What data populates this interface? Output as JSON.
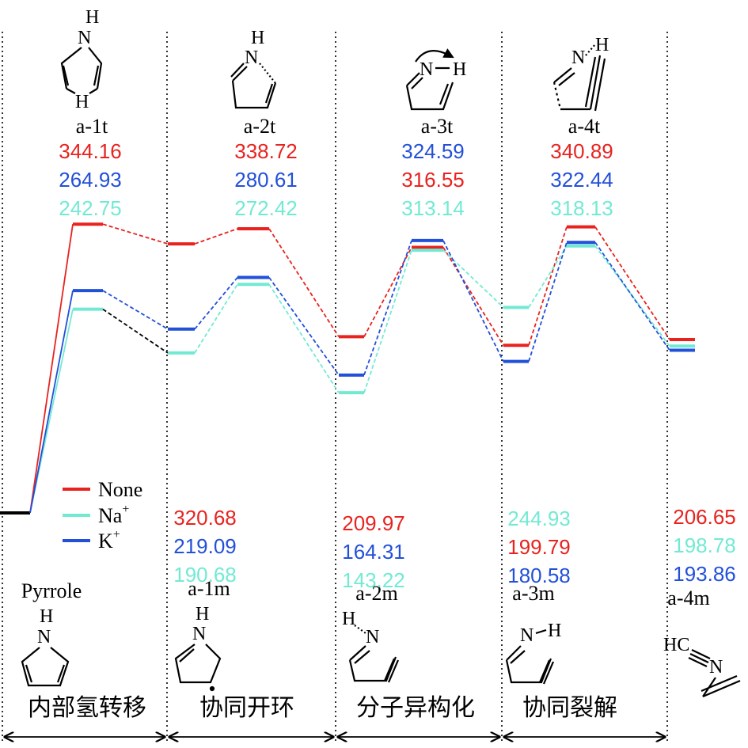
{
  "colors": {
    "None": "#e8231f",
    "Na": "#72ead3",
    "K": "#2250d9",
    "ink": "#000000"
  },
  "legend": {
    "position": "left",
    "items": [
      {
        "key": "None",
        "label": "None",
        "sup": ""
      },
      {
        "key": "Na",
        "label": "Na",
        "sup": "+"
      },
      {
        "key": "K",
        "label": "K",
        "sup": "+"
      }
    ]
  },
  "stages": [
    "内部氢转移",
    "协同开环",
    "分子异构化",
    "协同裂解"
  ],
  "states": [
    {
      "id": "pyrrole",
      "label": "Pyrrole",
      "values": {
        "None": 0,
        "Na": 0,
        "K": 0
      }
    },
    {
      "id": "a-1t",
      "label": "a-1t",
      "values": {
        "None": 344.16,
        "K": 264.93,
        "Na": 242.75
      },
      "order": [
        "None",
        "K",
        "Na"
      ]
    },
    {
      "id": "a-1m",
      "label": "a-1m",
      "values": {
        "None": 320.68,
        "K": 219.09,
        "Na": 190.68
      },
      "order": [
        "None",
        "K",
        "Na"
      ]
    },
    {
      "id": "a-2t",
      "label": "a-2t",
      "values": {
        "None": 338.72,
        "K": 280.61,
        "Na": 272.42
      },
      "order": [
        "None",
        "K",
        "Na"
      ]
    },
    {
      "id": "a-2m",
      "label": "a-2m",
      "values": {
        "None": 209.97,
        "K": 164.31,
        "Na": 143.22
      },
      "order": [
        "None",
        "K",
        "Na"
      ]
    },
    {
      "id": "a-3t",
      "label": "a-3t",
      "values": {
        "K": 324.59,
        "None": 316.55,
        "Na": 313.14
      },
      "order": [
        "K",
        "None",
        "Na"
      ]
    },
    {
      "id": "a-3m",
      "label": "a-3m",
      "values": {
        "Na": 244.93,
        "None": 199.79,
        "K": 180.58
      },
      "order": [
        "Na",
        "None",
        "K"
      ]
    },
    {
      "id": "a-4t",
      "label": "a-4t",
      "values": {
        "None": 340.89,
        "K": 322.44,
        "Na": 318.13
      },
      "order": [
        "None",
        "K",
        "Na"
      ]
    },
    {
      "id": "a-4m",
      "label": "a-4m",
      "values": {
        "None": 206.65,
        "Na": 198.78,
        "K": 193.86
      },
      "order": [
        "None",
        "Na",
        "K"
      ]
    }
  ],
  "chart_data": {
    "type": "line",
    "categories": [
      "Pyrrole",
      "a-1t",
      "a-1m",
      "a-2t",
      "a-2m",
      "a-3t",
      "a-3m",
      "a-4t",
      "a-4m"
    ],
    "series": [
      {
        "name": "None",
        "values": [
          0,
          344.16,
          320.68,
          338.72,
          209.97,
          316.55,
          199.79,
          340.89,
          206.65
        ]
      },
      {
        "name": "Na+",
        "values": [
          0,
          242.75,
          190.68,
          272.42,
          143.22,
          313.14,
          244.93,
          318.13,
          198.78
        ]
      },
      {
        "name": "K+",
        "values": [
          0,
          264.93,
          219.09,
          280.61,
          164.31,
          324.59,
          180.58,
          322.44,
          193.86
        ]
      }
    ],
    "stages": [
      "内部氢转移",
      "协同开环",
      "分子异构化",
      "协同裂解"
    ],
    "grid": false,
    "legend": "left"
  },
  "molecules": {
    "a-1t": {
      "n": "N",
      "h_top": "H",
      "h_bottom": "H"
    },
    "a-2t": {
      "n": "N",
      "h_top": "H"
    },
    "a-3t": {
      "n": "N",
      "h": "H"
    },
    "a-4t": {
      "n": "N",
      "h": "H"
    },
    "pyrrole": {
      "n": "N",
      "h": "H"
    },
    "a-1m": {
      "n": "N",
      "h": "H"
    },
    "a-2m": {
      "n": "N",
      "h": "H"
    },
    "a-3m": {
      "n": "N",
      "h": "H"
    },
    "a-4m": {
      "hc": "HC",
      "n": "N"
    }
  }
}
